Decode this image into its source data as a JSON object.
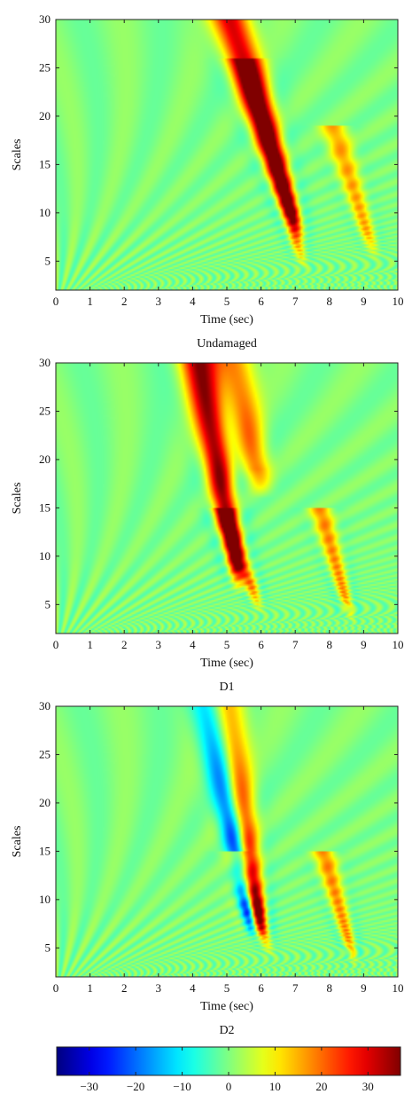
{
  "chart_data": [
    {
      "type": "heatmap",
      "title": "Undamaged",
      "xlabel": "Time (sec)",
      "ylabel": "Scales",
      "xlim": [
        0,
        10
      ],
      "ylim": [
        2,
        30
      ],
      "xticks": [
        0,
        1,
        2,
        3,
        4,
        5,
        6,
        7,
        8,
        9,
        10
      ],
      "yticks": [
        5,
        10,
        15,
        20,
        25,
        30
      ],
      "colormap": "jet",
      "bands": [
        {
          "center_time": 5.1,
          "top_scale": 30,
          "bottom_scale": 9,
          "slope": 0.09,
          "amplitude": 32
        },
        {
          "center_time": 5.6,
          "top_scale": 25,
          "bottom_scale": 6,
          "slope": 0.08,
          "amplitude": 18
        },
        {
          "center_time": 8.2,
          "top_scale": 18,
          "bottom_scale": 7,
          "slope": 0.09,
          "amplitude": 16
        }
      ]
    },
    {
      "type": "heatmap",
      "title": "D1",
      "xlabel": "Time (sec)",
      "ylabel": "Scales",
      "xlim": [
        0,
        10
      ],
      "ylim": [
        2,
        30
      ],
      "xticks": [
        0,
        1,
        2,
        3,
        4,
        5,
        6,
        7,
        8,
        9,
        10
      ],
      "yticks": [
        5,
        10,
        15,
        20,
        25,
        30
      ],
      "colormap": "jet",
      "bands": [
        {
          "center_time": 4.2,
          "top_scale": 30,
          "bottom_scale": 8,
          "slope": 0.05,
          "amplitude": 36
        },
        {
          "center_time": 5.2,
          "top_scale": 30,
          "bottom_scale": 18,
          "slope": 0.06,
          "amplitude": 20
        },
        {
          "center_time": 5.0,
          "top_scale": 14,
          "bottom_scale": 6,
          "slope": 0.1,
          "amplitude": 22
        },
        {
          "center_time": 7.8,
          "top_scale": 14,
          "bottom_scale": 5,
          "slope": 0.08,
          "amplitude": 18
        }
      ]
    },
    {
      "type": "heatmap",
      "title": "D2",
      "xlabel": "Time (sec)",
      "ylabel": "Scales",
      "xlim": [
        0,
        10
      ],
      "ylim": [
        2,
        30
      ],
      "xticks": [
        0,
        1,
        2,
        3,
        4,
        5,
        6,
        7,
        8,
        9,
        10
      ],
      "yticks": [
        5,
        10,
        15,
        20,
        25,
        30
      ],
      "colormap": "jet",
      "bands": [
        {
          "center_time": 4.6,
          "top_scale": 30,
          "bottom_scale": 8,
          "slope": 0.05,
          "amplitude": -34
        },
        {
          "center_time": 4.85,
          "top_scale": 30,
          "bottom_scale": 8,
          "slope": 0.05,
          "amplitude": 36
        },
        {
          "center_time": 5.3,
          "top_scale": 14,
          "bottom_scale": 6,
          "slope": 0.1,
          "amplitude": 20
        },
        {
          "center_time": 7.9,
          "top_scale": 14,
          "bottom_scale": 5,
          "slope": 0.08,
          "amplitude": 18
        }
      ]
    }
  ],
  "colorbar": {
    "ticks": [
      -30,
      -20,
      -10,
      0,
      10,
      20,
      30
    ],
    "tick_labels": [
      "−30",
      "−20",
      "−10",
      "0",
      "10",
      "20",
      "30"
    ],
    "range": [
      -37,
      37
    ],
    "colormap": "jet"
  }
}
